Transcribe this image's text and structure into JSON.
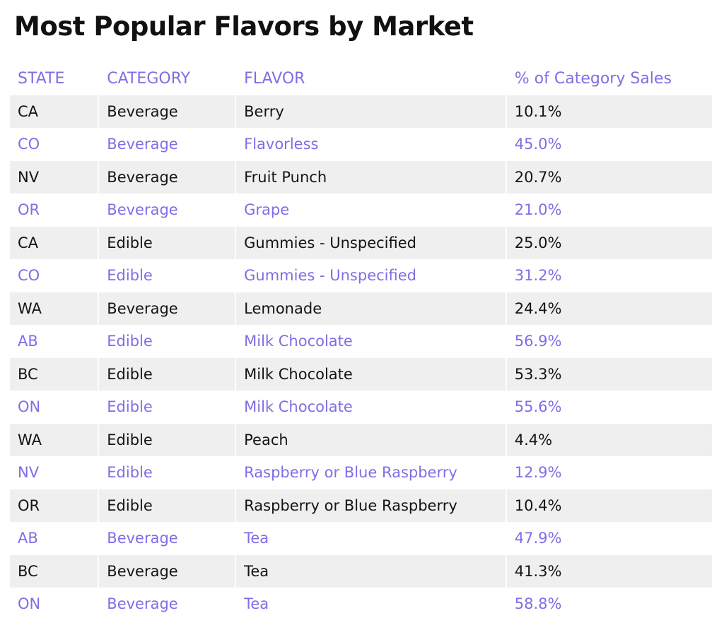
{
  "chart_data": {
    "type": "table",
    "title": "Most Popular Flavors by Market",
    "columns": [
      "STATE",
      "CATEGORY",
      "FLAVOR",
      "% of Category Sales"
    ],
    "rows": [
      [
        "CA",
        "Beverage",
        "Berry",
        "10.1%"
      ],
      [
        "CO",
        "Beverage",
        "Flavorless",
        "45.0%"
      ],
      [
        "NV",
        "Beverage",
        "Fruit Punch",
        "20.7%"
      ],
      [
        "OR",
        "Beverage",
        "Grape",
        "21.0%"
      ],
      [
        "CA",
        "Edible",
        "Gummies - Unspecified",
        "25.0%"
      ],
      [
        "CO",
        "Edible",
        "Gummies - Unspecified",
        "31.2%"
      ],
      [
        "WA",
        "Beverage",
        "Lemonade",
        "24.4%"
      ],
      [
        "AB",
        "Edible",
        "Milk Chocolate",
        "56.9%"
      ],
      [
        "BC",
        "Edible",
        "Milk Chocolate",
        "53.3%"
      ],
      [
        "ON",
        "Edible",
        "Milk Chocolate",
        "55.6%"
      ],
      [
        "WA",
        "Edible",
        "Peach",
        "4.4%"
      ],
      [
        "NV",
        "Edible",
        "Raspberry or Blue Raspberry",
        "12.9%"
      ],
      [
        "OR",
        "Edible",
        "Raspberry or Blue Raspberry",
        "10.4%"
      ],
      [
        "AB",
        "Beverage",
        "Tea",
        "47.9%"
      ],
      [
        "BC",
        "Beverage",
        "Tea",
        "41.3%"
      ],
      [
        "ON",
        "Beverage",
        "Tea",
        "58.8%"
      ]
    ]
  },
  "colors": {
    "accent": "#7d6fe6",
    "text": "#141414",
    "row_shade": "#efefef"
  }
}
